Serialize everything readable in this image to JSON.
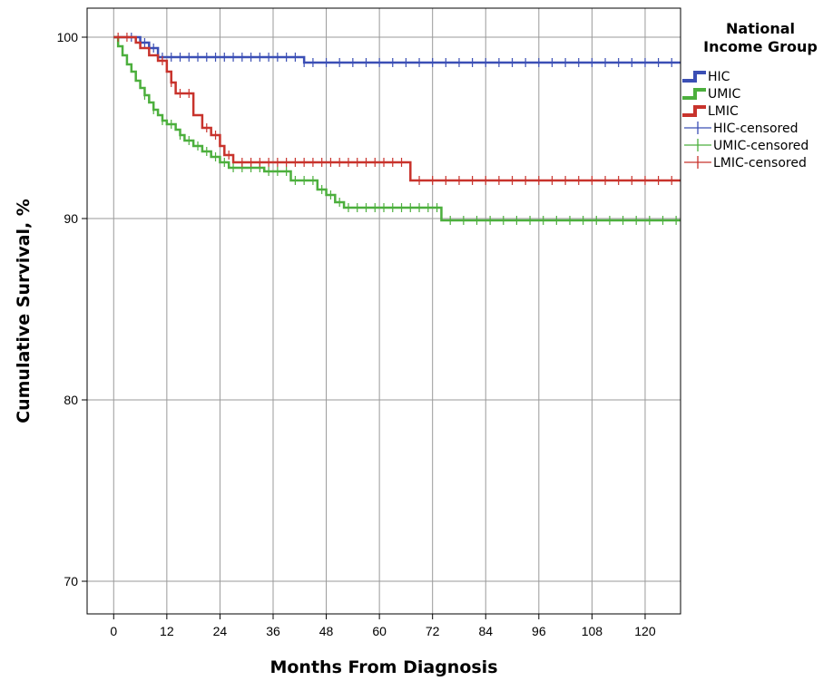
{
  "chart_data": {
    "type": "line",
    "subtype": "kaplan-meier",
    "xlabel": "Months From Diagnosis",
    "ylabel": "Cumulative Survival, %",
    "xlim": [
      -6,
      128
    ],
    "ylim": [
      68.2,
      101.6
    ],
    "xticks": [
      0,
      12,
      24,
      36,
      48,
      60,
      72,
      84,
      96,
      108,
      120
    ],
    "yticks": [
      70,
      80,
      90,
      100
    ],
    "grid": true,
    "legend": {
      "title_line1": "National",
      "title_line2": "Income Group",
      "placement": "top-right, outside plot"
    },
    "series": [
      {
        "name": "HIC",
        "censored_label": "HIC-censored",
        "color": "#3b4fb5",
        "steps": [
          [
            0,
            100
          ],
          [
            6,
            99.7
          ],
          [
            8,
            99.4
          ],
          [
            10,
            98.9
          ],
          [
            43,
            98.6
          ],
          [
            128,
            98.6
          ]
        ],
        "censor_x": [
          4,
          7,
          9,
          11,
          13,
          15,
          17,
          19,
          21,
          23,
          25,
          27,
          29,
          31,
          33,
          35,
          37,
          39,
          41,
          43,
          45,
          48,
          51,
          54,
          57,
          60,
          63,
          66,
          69,
          72,
          75,
          78,
          81,
          84,
          87,
          90,
          93,
          96,
          99,
          102,
          105,
          108,
          111,
          114,
          117,
          120,
          123,
          126
        ]
      },
      {
        "name": "UMIC",
        "censored_label": "UMIC-censored",
        "color": "#4caf3d",
        "steps": [
          [
            0,
            100
          ],
          [
            1,
            99.5
          ],
          [
            2,
            99
          ],
          [
            3,
            98.5
          ],
          [
            4,
            98.1
          ],
          [
            5,
            97.6
          ],
          [
            6,
            97.2
          ],
          [
            7,
            96.8
          ],
          [
            8,
            96.4
          ],
          [
            9,
            96
          ],
          [
            10,
            95.7
          ],
          [
            11,
            95.4
          ],
          [
            12,
            95.2
          ],
          [
            14,
            94.9
          ],
          [
            15,
            94.6
          ],
          [
            16,
            94.3
          ],
          [
            18,
            94
          ],
          [
            20,
            93.7
          ],
          [
            22,
            93.4
          ],
          [
            24,
            93.1
          ],
          [
            26,
            92.8
          ],
          [
            34,
            92.6
          ],
          [
            40,
            92.1
          ],
          [
            46,
            91.6
          ],
          [
            48,
            91.3
          ],
          [
            50,
            90.9
          ],
          [
            52,
            90.6
          ],
          [
            74,
            89.9
          ],
          [
            128,
            89.9
          ]
        ],
        "censor_x": [
          7,
          9,
          11,
          13,
          15,
          17,
          19,
          21,
          23,
          25,
          27,
          29,
          31,
          33,
          35,
          37,
          39,
          41,
          43,
          45,
          47,
          49,
          51,
          53,
          55,
          57,
          59,
          61,
          63,
          65,
          67,
          69,
          71,
          73,
          76,
          79,
          82,
          85,
          88,
          91,
          94,
          97,
          100,
          103,
          106,
          109,
          112,
          115,
          118,
          121,
          124,
          127
        ]
      },
      {
        "name": "LMIC",
        "censored_label": "LMIC-censored",
        "color": "#c8332c",
        "steps": [
          [
            0,
            100
          ],
          [
            5,
            99.7
          ],
          [
            6,
            99.4
          ],
          [
            8,
            99
          ],
          [
            10,
            98.7
          ],
          [
            12,
            98.1
          ],
          [
            13,
            97.5
          ],
          [
            14,
            96.9
          ],
          [
            18,
            95.7
          ],
          [
            20,
            95
          ],
          [
            22,
            94.6
          ],
          [
            24,
            94
          ],
          [
            25,
            93.5
          ],
          [
            27,
            93.1
          ],
          [
            67,
            92.1
          ],
          [
            128,
            92.1
          ]
        ],
        "censor_x": [
          1,
          3,
          11,
          13,
          15,
          17,
          21,
          23,
          26,
          29,
          31,
          33,
          35,
          37,
          39,
          41,
          43,
          45,
          47,
          49,
          51,
          53,
          55,
          57,
          59,
          61,
          63,
          65,
          69,
          72,
          75,
          78,
          81,
          84,
          87,
          90,
          93,
          96,
          99,
          102,
          105,
          108,
          111,
          114,
          117,
          120,
          123,
          126
        ]
      }
    ]
  }
}
